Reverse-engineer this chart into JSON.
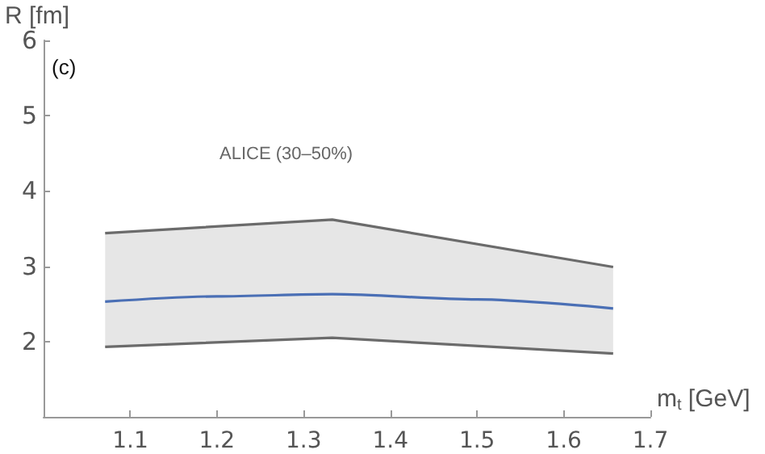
{
  "chart_data": {
    "type": "line",
    "xlabel": "m$_{t}$ [GeV]",
    "ylabel": "R [fm]",
    "annotations": [
      "(c)",
      "ALICE (30–50%)"
    ],
    "series": [
      {
        "color": "#4a6fb5",
        "x": [
          1.071,
          1.2,
          1.333,
          1.5,
          1.657
        ],
        "values": [
          2.53,
          2.6,
          2.63,
          2.56,
          2.44
        ],
        "lower": [
          1.93,
          1.99,
          2.05,
          1.94,
          1.84
        ],
        "upper": [
          3.44,
          3.53,
          3.62,
          3.3,
          2.99
        ]
      },
      {
        "color": "#6b6b6b",
        "x": [
          1.071,
          1.333,
          1.657
        ],
        "values": [
          3.44,
          3.62,
          2.99
        ]
      },
      {
        "color": "#6b6b6b",
        "x": [
          1.071,
          1.333,
          1.657
        ],
        "values": [
          1.93,
          2.05,
          1.84
        ]
      }
    ],
    "xlim": [
      1.0,
      1.7
    ],
    "xticks": [
      1.1,
      1.2,
      1.3,
      1.4,
      1.5,
      1.6,
      1.7
    ],
    "ylim": [
      1,
      6
    ],
    "yticks": [
      2,
      3,
      4,
      5,
      6
    ],
    "grid": false,
    "marker": "none",
    "line_style": "solid"
  }
}
